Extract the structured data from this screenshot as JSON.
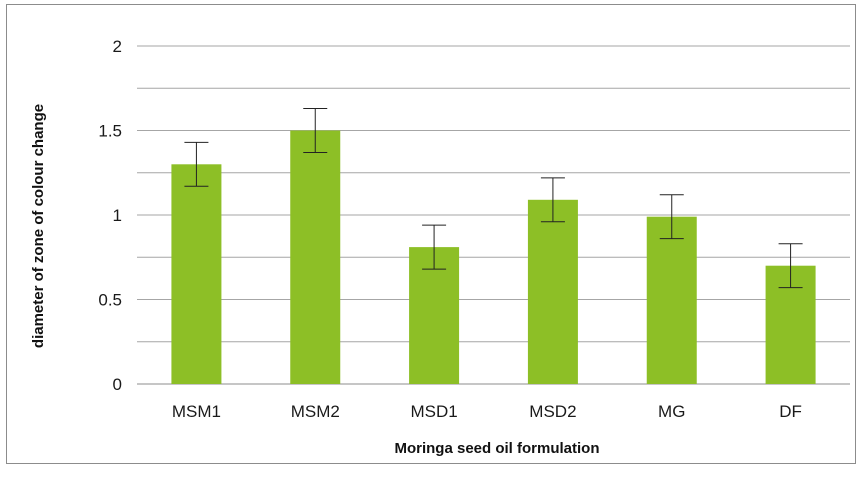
{
  "chart_data": {
    "type": "bar",
    "title": "",
    "xlabel": "Moringa seed oil formulation",
    "ylabel": "diameter of zone of colour change",
    "categories": [
      "MSM1",
      "MSM2",
      "MSD1",
      "MSD2",
      "MG",
      "DF"
    ],
    "values": [
      1.3,
      1.5,
      0.81,
      1.09,
      0.99,
      0.7
    ],
    "error": [
      0.13,
      0.13,
      0.13,
      0.13,
      0.13,
      0.13
    ],
    "ylim": [
      0,
      2
    ],
    "yticks": [
      "0",
      "0.5",
      "1",
      "1.5",
      "2"
    ],
    "grid": true,
    "bar_color": "#8dbf26",
    "grid_color": "#a6a6a6"
  }
}
